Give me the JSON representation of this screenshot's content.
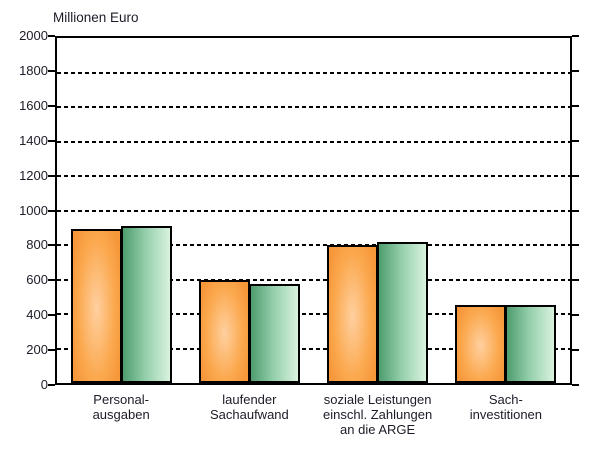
{
  "chart_data": {
    "type": "bar",
    "title": "Millionen Euro",
    "categories": [
      "Personal-\nausgaben",
      "laufender\nSachaufwand",
      "soziale Leistungen\neinschl. Zahlungen\nan die ARGE",
      "Sach-\ninvestitionen"
    ],
    "series": [
      {
        "name": "orange",
        "values": [
          890,
          600,
          800,
          450
        ]
      },
      {
        "name": "green",
        "values": [
          910,
          575,
          820,
          455
        ]
      }
    ],
    "ylim": [
      0,
      2000
    ],
    "y_tick_step": 200,
    "y_ticks": [
      "2000",
      "1800",
      "1600",
      "1400",
      "1200",
      "1000",
      "800",
      "600",
      "400",
      "200",
      "0"
    ],
    "xlabel": "",
    "ylabel": "Millionen Euro",
    "grid": "horizontal-dashed",
    "legend_position": "none"
  },
  "colors": {
    "orange_edge": "#F6973A",
    "orange_mid": "#FBA94F",
    "orange_center": "#FFD0A0",
    "green_dark": "#4E9D6E",
    "green_mid": "#95CFAC",
    "green_light": "#D9F3DF",
    "axis": "#000000",
    "text": "#1c1c28",
    "background": "#ffffff"
  }
}
